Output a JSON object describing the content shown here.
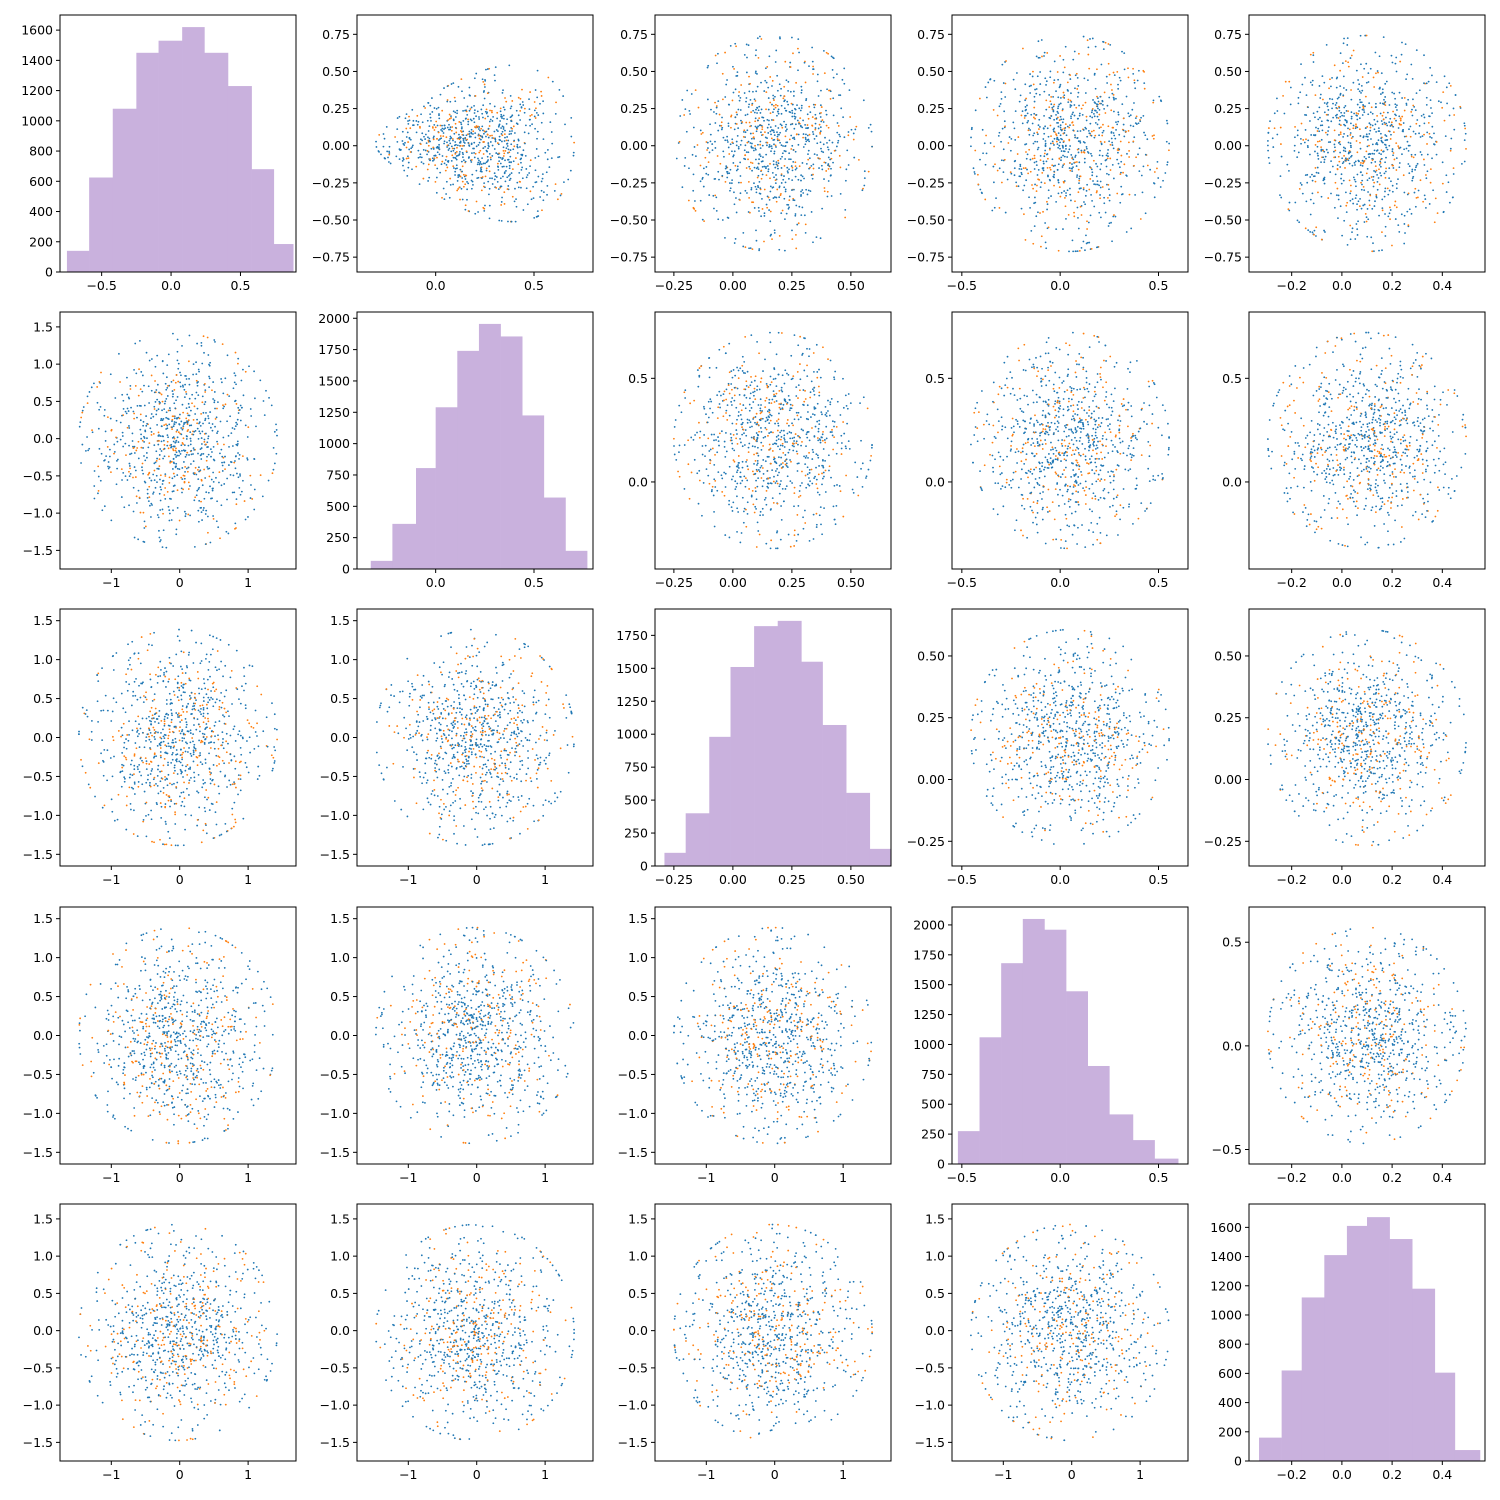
{
  "figure": {
    "type": "pairplot",
    "rows": 5,
    "cols": 5
  },
  "colors": {
    "blue": "#1f77b4",
    "orange": "#ff7f0e",
    "hist": "#c9b1dd"
  },
  "variables": [
    {
      "xticks": [
        -0.5,
        0.0,
        0.5
      ],
      "xlim": [
        -0.8,
        0.9
      ],
      "yticks": [
        -0.75,
        -0.5,
        -0.25,
        0.0,
        0.25,
        0.5,
        0.75
      ],
      "ylim": [
        -0.85,
        0.88
      ]
    },
    {
      "xticks": [
        0.0,
        0.5
      ],
      "xlim": [
        -0.4,
        0.8
      ],
      "yticks": [
        -1.5,
        -1.0,
        -0.5,
        0.0,
        0.5,
        1.0,
        1.5
      ],
      "ylim": [
        -1.75,
        1.7
      ]
    },
    {
      "xticks": [
        -0.25,
        0.0,
        0.25,
        0.5
      ],
      "xlim": [
        -0.33,
        0.67
      ],
      "yticks": [
        -1.5,
        -1.0,
        -0.5,
        0.0,
        0.5,
        1.0,
        1.5
      ],
      "ylim": [
        -1.65,
        1.65
      ]
    },
    {
      "xticks": [
        -0.5,
        0.0,
        0.5
      ],
      "xlim": [
        -0.55,
        0.65
      ],
      "yticks": [
        -1.5,
        -1.0,
        -0.5,
        0.0,
        0.5,
        1.0,
        1.5
      ],
      "ylim": [
        -1.65,
        1.65
      ]
    },
    {
      "xticks": [
        -0.2,
        0.0,
        0.2,
        0.4
      ],
      "xlim": [
        -0.37,
        0.57
      ],
      "yticks": [
        -1.5,
        -1.0,
        -0.5,
        0.0,
        0.5,
        1.0,
        1.5
      ],
      "ylim": [
        -1.75,
        1.7
      ]
    }
  ],
  "scatter_x_ranges": [
    {
      "xticks": [
        -1,
        0,
        1
      ],
      "xlim": [
        -1.75,
        1.7
      ]
    },
    {
      "xticks": [
        -1,
        0,
        1
      ],
      "xlim": [
        -1.75,
        1.7
      ]
    },
    {
      "xticks": [
        -1,
        0,
        1
      ],
      "xlim": [
        -1.75,
        1.7
      ]
    },
    {
      "xticks": [
        -1,
        0,
        1
      ],
      "xlim": [
        -1.75,
        1.7
      ]
    },
    {
      "xticks": [
        -0.2,
        0.0,
        0.2,
        0.4
      ],
      "xlim": [
        -0.37,
        0.57
      ]
    }
  ],
  "chart_data": [
    {
      "type": "bar",
      "panel": "diagonal-1",
      "bins": [
        [
          -0.75,
          -0.59
        ],
        [
          -0.59,
          -0.42
        ],
        [
          -0.42,
          -0.25
        ],
        [
          -0.25,
          -0.09
        ],
        [
          -0.09,
          0.08
        ],
        [
          0.08,
          0.24
        ],
        [
          0.24,
          0.41
        ],
        [
          0.41,
          0.58
        ],
        [
          0.58,
          0.74
        ],
        [
          0.74,
          0.88
        ]
      ],
      "values": [
        140,
        625,
        1080,
        1450,
        1530,
        1620,
        1450,
        1230,
        680,
        185
      ],
      "ylim": [
        0,
        1700
      ],
      "yticks": [
        0,
        200,
        400,
        600,
        800,
        1000,
        1200,
        1400,
        1600
      ]
    },
    {
      "type": "bar",
      "panel": "diagonal-2",
      "bins": [
        [
          -0.33,
          -0.22
        ],
        [
          -0.22,
          -0.1
        ],
        [
          -0.1,
          0.0
        ],
        [
          0.0,
          0.11
        ],
        [
          0.11,
          0.22
        ],
        [
          0.22,
          0.33
        ],
        [
          0.33,
          0.44
        ],
        [
          0.44,
          0.55
        ],
        [
          0.55,
          0.66
        ],
        [
          0.66,
          0.77
        ]
      ],
      "values": [
        65,
        360,
        805,
        1290,
        1740,
        1955,
        1855,
        1225,
        570,
        145
      ],
      "ylim": [
        0,
        2050
      ],
      "yticks": [
        0,
        250,
        500,
        750,
        1000,
        1250,
        1500,
        1750,
        2000
      ]
    },
    {
      "type": "bar",
      "panel": "diagonal-3",
      "bins": [
        [
          -0.29,
          -0.2
        ],
        [
          -0.2,
          -0.1
        ],
        [
          -0.1,
          -0.01
        ],
        [
          -0.01,
          0.09
        ],
        [
          0.09,
          0.19
        ],
        [
          0.19,
          0.29
        ],
        [
          0.29,
          0.38
        ],
        [
          0.38,
          0.48
        ],
        [
          0.48,
          0.58
        ],
        [
          0.58,
          0.67
        ]
      ],
      "values": [
        100,
        400,
        980,
        1510,
        1820,
        1860,
        1550,
        1070,
        555,
        130
      ],
      "ylim": [
        0,
        1950
      ],
      "yticks": [
        0,
        250,
        500,
        750,
        1000,
        1250,
        1500,
        1750
      ]
    },
    {
      "type": "bar",
      "panel": "diagonal-4",
      "bins": [
        [
          -0.52,
          -0.41
        ],
        [
          -0.41,
          -0.3
        ],
        [
          -0.3,
          -0.19
        ],
        [
          -0.19,
          -0.08
        ],
        [
          -0.08,
          0.03
        ],
        [
          0.03,
          0.14
        ],
        [
          0.14,
          0.25
        ],
        [
          0.25,
          0.37
        ],
        [
          0.37,
          0.48
        ],
        [
          0.48,
          0.6
        ]
      ],
      "values": [
        275,
        1060,
        1680,
        2050,
        1960,
        1445,
        820,
        415,
        200,
        45
      ],
      "ylim": [
        0,
        2150
      ],
      "yticks": [
        0,
        250,
        500,
        750,
        1000,
        1250,
        1500,
        1750,
        2000
      ]
    },
    {
      "type": "bar",
      "panel": "diagonal-5",
      "bins": [
        [
          -0.33,
          -0.24
        ],
        [
          -0.24,
          -0.16
        ],
        [
          -0.16,
          -0.07
        ],
        [
          -0.07,
          0.02
        ],
        [
          0.02,
          0.1
        ],
        [
          0.1,
          0.19
        ],
        [
          0.19,
          0.28
        ],
        [
          0.28,
          0.37
        ],
        [
          0.37,
          0.45
        ],
        [
          0.45,
          0.55
        ]
      ],
      "values": [
        160,
        620,
        1120,
        1410,
        1610,
        1670,
        1520,
        1180,
        605,
        75
      ],
      "ylim": [
        0,
        1760
      ],
      "yticks": [
        0,
        200,
        400,
        600,
        800,
        1000,
        1200,
        1400,
        1600
      ]
    }
  ]
}
